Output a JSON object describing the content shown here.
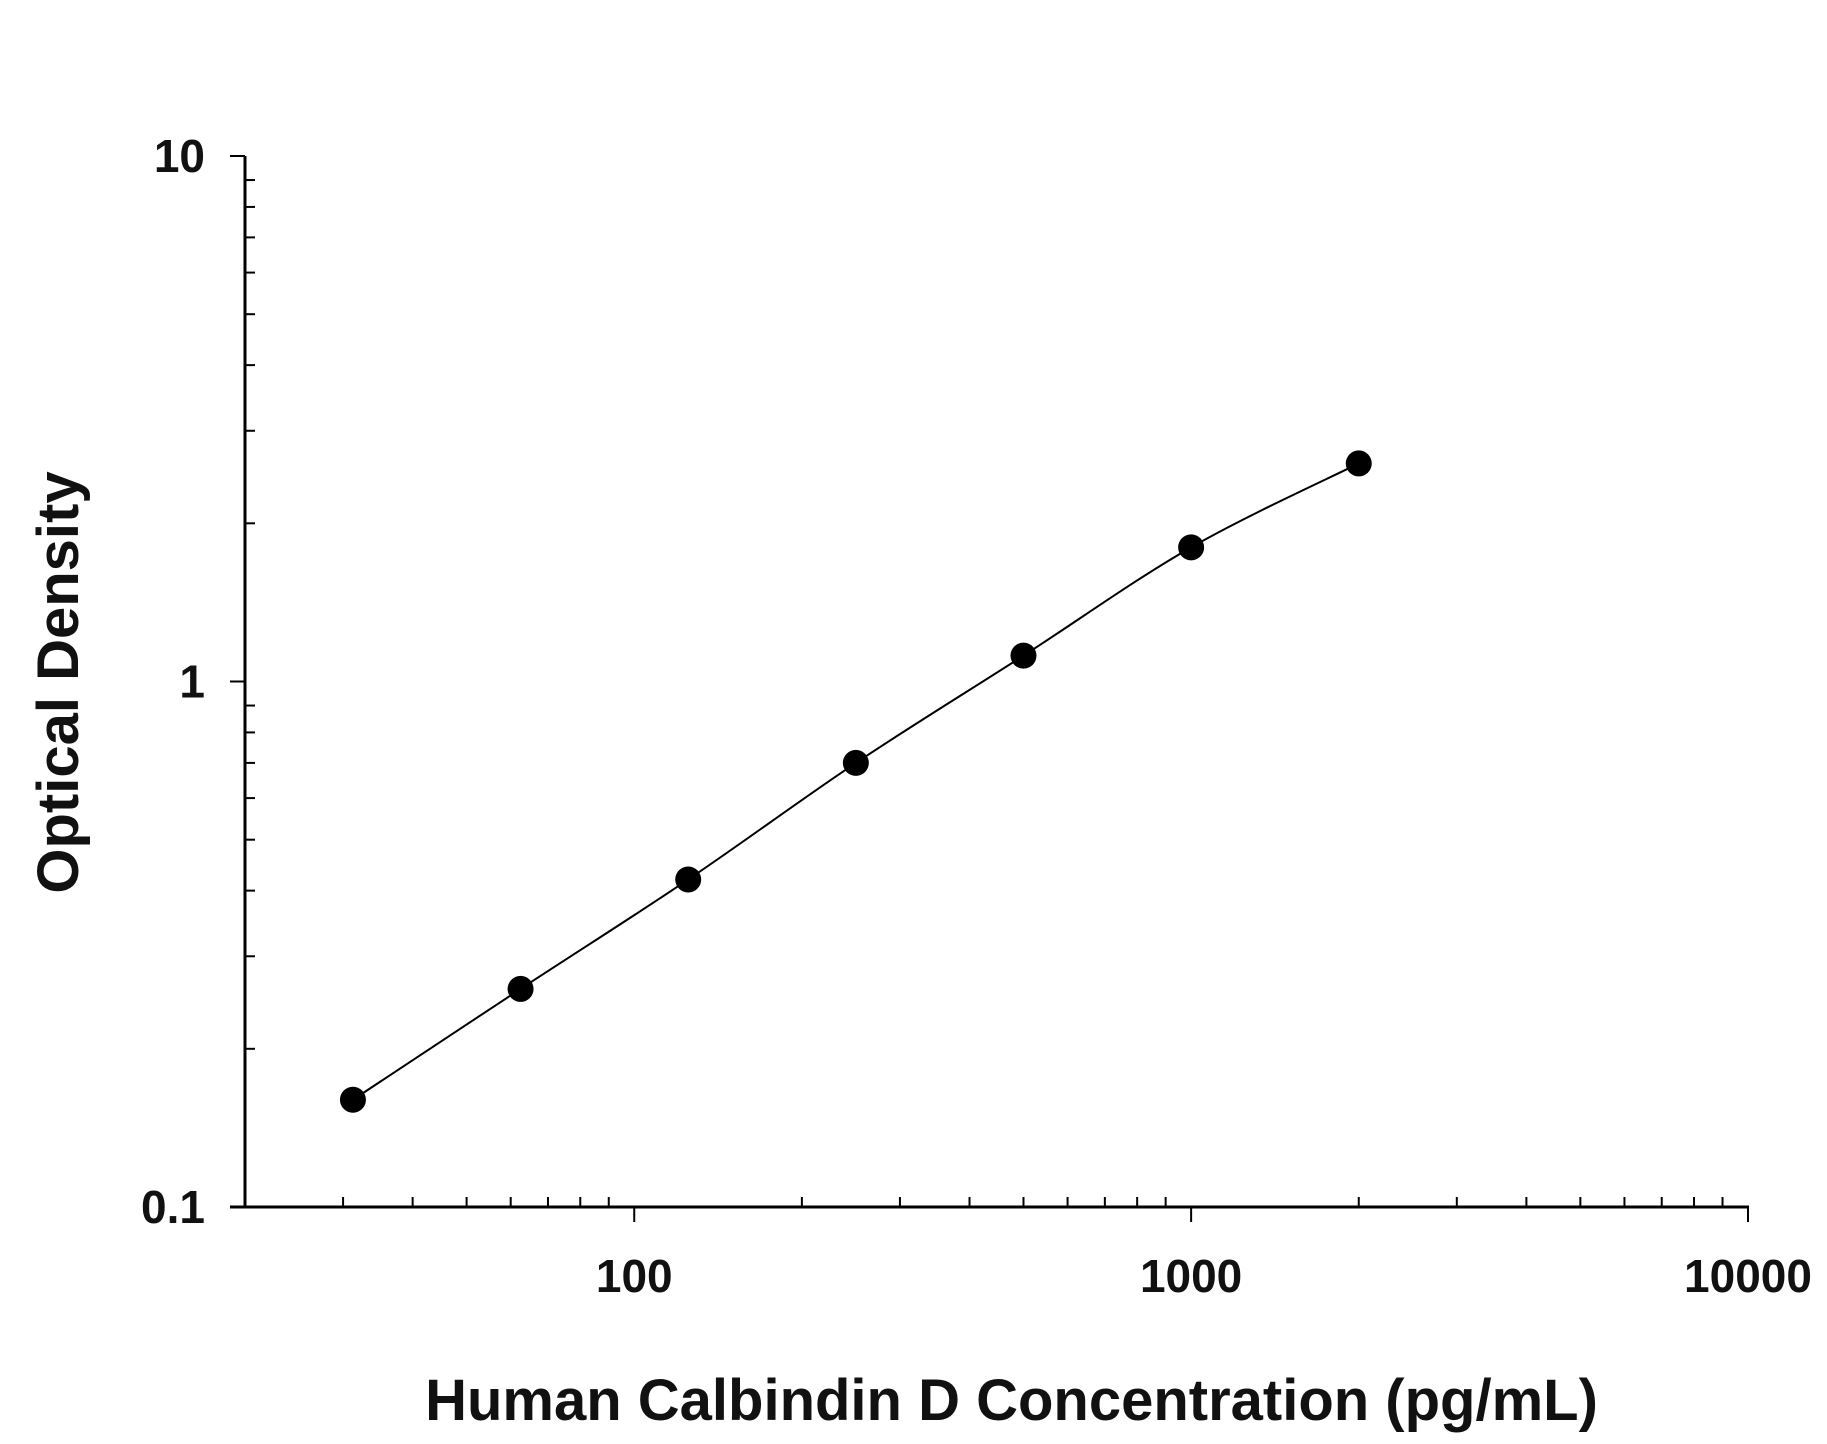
{
  "chart_data": {
    "type": "line",
    "title": "",
    "xlabel": "Human Calbindin D Concentration (pg/mL)",
    "ylabel": "Optical Density",
    "x_scale": "log",
    "y_scale": "log",
    "xlim": [
      20,
      10000
    ],
    "ylim": [
      0.1,
      10
    ],
    "x_ticks": [
      {
        "value": 100,
        "label": "100"
      },
      {
        "value": 1000,
        "label": "1000"
      },
      {
        "value": 10000,
        "label": "10000"
      }
    ],
    "y_ticks": [
      {
        "value": 10,
        "label": "10"
      },
      {
        "value": 1,
        "label": "1"
      },
      {
        "value": 0.1,
        "label": "0.1"
      }
    ],
    "grid": false,
    "legend": "none",
    "series": [
      {
        "x": [
          31.25,
          62.5,
          125,
          250,
          500,
          1000,
          2000
        ],
        "y": [
          0.16,
          0.26,
          0.42,
          0.7,
          1.12,
          1.8,
          2.6
        ],
        "marker": "circle",
        "color": "#000000",
        "fit_curve": true
      }
    ]
  }
}
